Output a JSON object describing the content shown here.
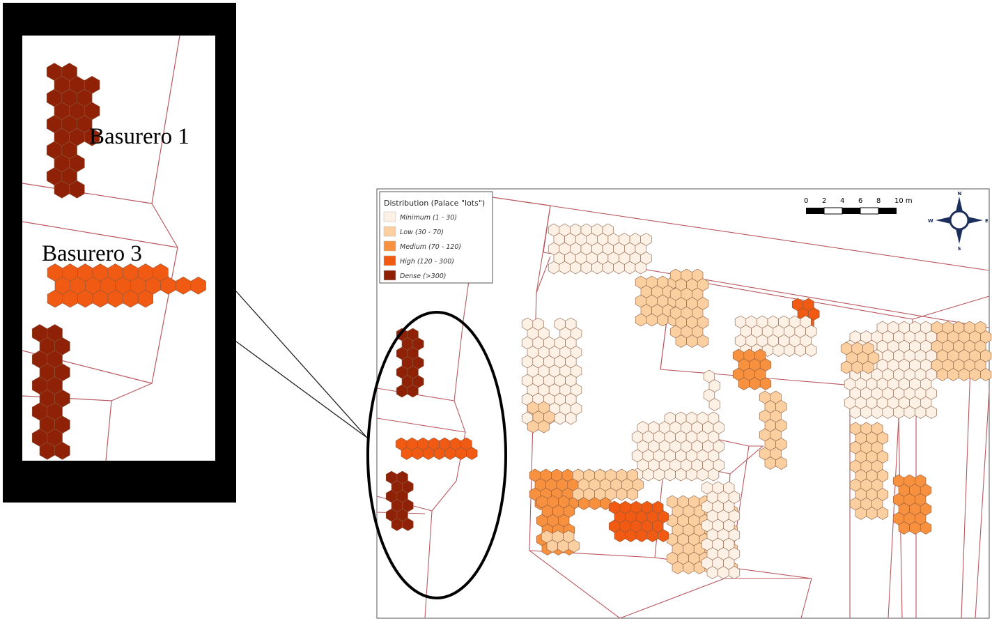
{
  "inset": {
    "label_1": "Basurero 1",
    "label_2": "Basurero 3"
  },
  "legend": {
    "title": "Distribution (Palace \"lots\")",
    "items": [
      {
        "key": "minimum",
        "label": "Minimum (1 - 30)",
        "color": "#fdf0e4"
      },
      {
        "key": "low",
        "label": "Low (30 - 70)",
        "color": "#fbcf9f"
      },
      {
        "key": "medium",
        "label": "Medium (70 - 120)",
        "color": "#f7913f"
      },
      {
        "key": "high",
        "label": "High (120 - 300)",
        "color": "#f05a13"
      },
      {
        "key": "dense",
        "label": "Dense (>300)",
        "color": "#8f2206"
      }
    ]
  },
  "scale_bar": {
    "ticks": [
      "0",
      "2",
      "4",
      "6",
      "8",
      "10 m"
    ]
  },
  "compass": {
    "north": "N",
    "south": "S",
    "east": "E",
    "west": "W"
  },
  "colors": {
    "wall_line": "#b9585e",
    "hex_stroke": "#8a5a40",
    "frame": "#000000"
  }
}
